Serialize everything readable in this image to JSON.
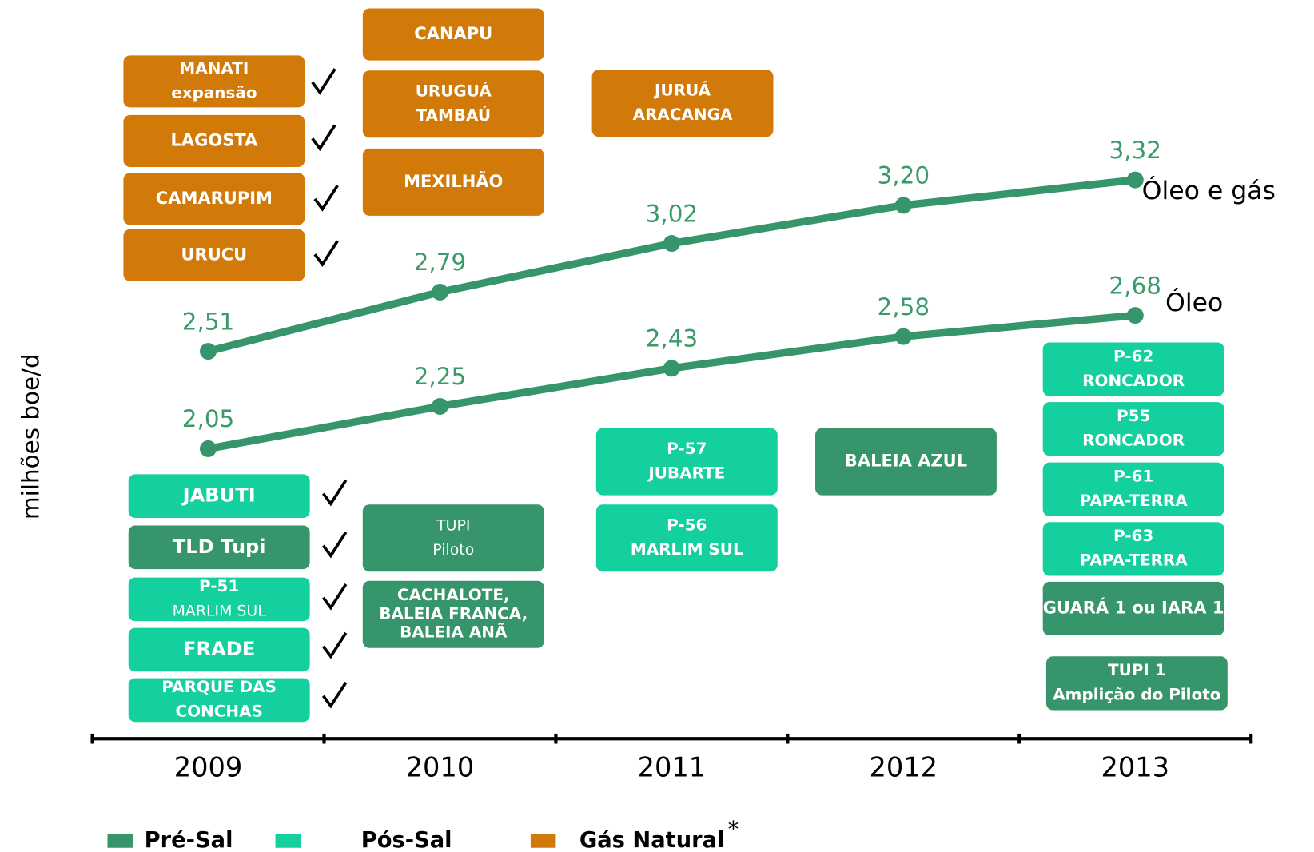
{
  "chart_data": {
    "type": "line",
    "y_label": "milhões boe/d",
    "categories": [
      "2009",
      "2010",
      "2011",
      "2012",
      "2013"
    ],
    "ylim": [
      0.68,
      4.17
    ],
    "series": [
      {
        "name": "Óleo e gás",
        "color": "#36956a",
        "values": [
          2.51,
          2.79,
          3.02,
          3.2,
          3.32
        ],
        "value_labels": [
          "2,51",
          "2,79",
          "3,02",
          "3,20",
          "3,32"
        ]
      },
      {
        "name": "Óleo",
        "color": "#36956a",
        "values": [
          2.05,
          2.25,
          2.43,
          2.58,
          2.68
        ],
        "value_labels": [
          "2,05",
          "2,25",
          "2,43",
          "2,58",
          "2,68"
        ]
      }
    ],
    "legend": [
      {
        "name": "Pré-Sal",
        "color": "#36956a",
        "projects": [
          [
            "TLD Tupi"
          ],
          [
            "TUPI",
            "Piloto"
          ],
          [
            "CACHALOTE,",
            "BALEIA FRANCA,",
            "BALEIA ANÃ"
          ],
          [
            "BALEIA AZUL"
          ],
          [
            "GUARÁ 1 ou IARA 1"
          ],
          [
            "TUPI 1",
            "Amplição do Piloto"
          ]
        ]
      },
      {
        "name": "Pós-Sal",
        "color": "#14cf9e",
        "projects": [
          [
            "JABUTI"
          ],
          [
            "P-51",
            "MARLIM SUL"
          ],
          [
            "FRADE"
          ],
          [
            "PARQUE DAS",
            "CONCHAS"
          ],
          [
            "P-57",
            "JUBARTE"
          ],
          [
            "P-56",
            "MARLIM SUL"
          ],
          [
            "P-62",
            "RONCADOR"
          ],
          [
            "P55",
            "RONCADOR"
          ],
          [
            "P-61",
            "PAPA-TERRA"
          ],
          [
            "P-63",
            "PAPA-TERRA"
          ]
        ]
      },
      {
        "name": "Gás Natural",
        "color": "#d17a0a",
        "projects": [
          [
            "MANATI",
            "expansão"
          ],
          [
            "LAGOSTA"
          ],
          [
            "CAMARUPIM"
          ],
          [
            "URUCU"
          ],
          [
            "CANAPU"
          ],
          [
            "URUGUÁ",
            "TAMBAÚ"
          ],
          [
            "MEXILHÃO"
          ],
          [
            "JURUÁ",
            "ARACANGA"
          ]
        ]
      }
    ],
    "legend_footnote": "*"
  }
}
